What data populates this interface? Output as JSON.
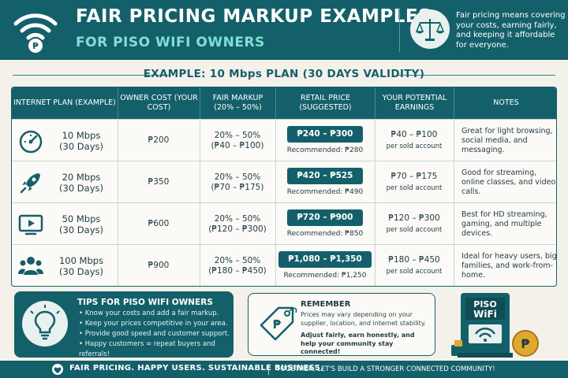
{
  "header": {
    "title": "FAIR PRICING MARKUP EXAMPLES",
    "subtitle": "FOR PISO WIFI OWNERS",
    "note": "Fair pricing means covering your costs, earning fairly, and keeping it affordable for everyone.",
    "logo_icon": "wifi-peso-icon",
    "badge_icon": "balance-scale-icon"
  },
  "example_title": "EXAMPLE: 10 Mbps PLAN (30 DAYS VALIDITY)",
  "table": {
    "headers": [
      "INTERNET PLAN (EXAMPLE)",
      "OWNER COST (YOUR COST)",
      "FAIR MARKUP (20% – 50%)",
      "RETAIL PRICE (SUGGESTED)",
      "YOUR POTENTIAL EARNINGS",
      "NOTES"
    ],
    "rows": [
      {
        "icon": "speedometer-icon",
        "plan": "10 Mbps",
        "days": "(30 Days)",
        "cost": "₱200",
        "markup": "20% – 50%",
        "markup_range": "(₱40 – ₱100)",
        "price": "₱240 – ₱300",
        "recommended": "Recommended: ₱280",
        "earn": "₱40 – ₱100",
        "earn_sub": "per sold account",
        "notes": "Great for light browsing, social media, and messaging."
      },
      {
        "icon": "rocket-icon",
        "plan": "20 Mbps",
        "days": "(30 Days)",
        "cost": "₱350",
        "markup": "20% – 50%",
        "markup_range": "(₱70 – ₱175)",
        "price": "₱420 – ₱525",
        "recommended": "Recommended: ₱490",
        "earn": "₱70 – ₱175",
        "earn_sub": "per sold account",
        "notes": "Good for streaming, online classes, and video calls."
      },
      {
        "icon": "tv-play-icon",
        "plan": "50 Mbps",
        "days": "(30 Days)",
        "cost": "₱600",
        "markup": "20% – 50%",
        "markup_range": "(₱120 – ₱300)",
        "price": "₱720 – ₱900",
        "recommended": "Recommended: ₱850",
        "earn": "₱120 – ₱300",
        "earn_sub": "per sold account",
        "notes": "Best for HD streaming, gaming, and multiple devices."
      },
      {
        "icon": "users-group-icon",
        "plan": "100 Mbps",
        "days": "(30 Days)",
        "cost": "₱900",
        "markup": "20% – 50%",
        "markup_range": "(₱180 – ₱450)",
        "price": "₱1,080 – ₱1,350",
        "recommended": "Recommended: ₱1,250",
        "earn": "₱180 – ₱450",
        "earn_sub": "per sold account",
        "notes": "Ideal for heavy users, big families, and work-from-home."
      }
    ]
  },
  "tips": {
    "icon": "lightbulb-icon",
    "title": "TIPS FOR PISO WIFI OWNERS",
    "items": [
      "Know your costs and add a fair markup.",
      "Keep your prices competitive in your area.",
      "Provide good speed and customer support.",
      "Happy customers = repeat buyers and referrals!"
    ]
  },
  "remember": {
    "icon": "price-tag-icon",
    "title": "REMEMBER",
    "text": "Prices may vary depending on your supplier, location, and internet stability.",
    "bold": "Adjust fairly, earn honestly, and help your community stay connected!"
  },
  "machine": {
    "icon": "piso-wifi-machine-icon",
    "label_top": "PISO",
    "label_bottom": "WiFi"
  },
  "footer": {
    "icon": "heart-icon",
    "left": "FAIR PRICING. HAPPY USERS. SUSTAINABLE BUSINESS.",
    "right": "TOGETHER, LET'S BUILD A STRONGER CONNECTED COMMUNITY!"
  },
  "colors": {
    "primary": "#14606a",
    "accent": "#7fe0d4",
    "background": "#f4f1ea",
    "coin": "#e0a82e"
  }
}
